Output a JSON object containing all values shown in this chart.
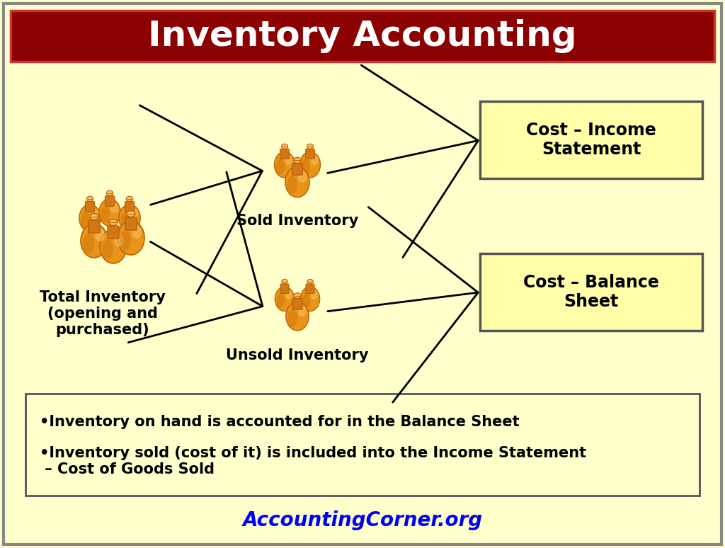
{
  "title": "Inventory Accounting",
  "title_color": "#ffffff",
  "title_bg_color": "#8B0000",
  "title_border_color": "#cc3333",
  "bg_color": "#FFFFCC",
  "box_fill_color": "#FFFFAA",
  "box_edge_color": "#555555",
  "arrow_color": "#000000",
  "text_color": "#000000",
  "blue_text_color": "#0000FF",
  "box1_label": "Cost – Income\nStatement",
  "box2_label": "Cost – Balance\nSheet",
  "label_total": "Total Inventory\n(opening and\npurchased)",
  "label_sold": "Sold Inventory",
  "label_unsold": "Unsold Inventory",
  "bullet1": "•Inventory on hand is accounted for in the Balance Sheet",
  "bullet2": "•Inventory sold (cost of it) is included into the Income Statement\n – Cost of Goods Sold",
  "footer": "AccountingCorner.org",
  "font_family": "Comic Sans MS",
  "bag_body_color": "#E8941A",
  "bag_dark_color": "#C06000",
  "bag_light_color": "#F5C060",
  "bag_neck_color": "#D07818"
}
